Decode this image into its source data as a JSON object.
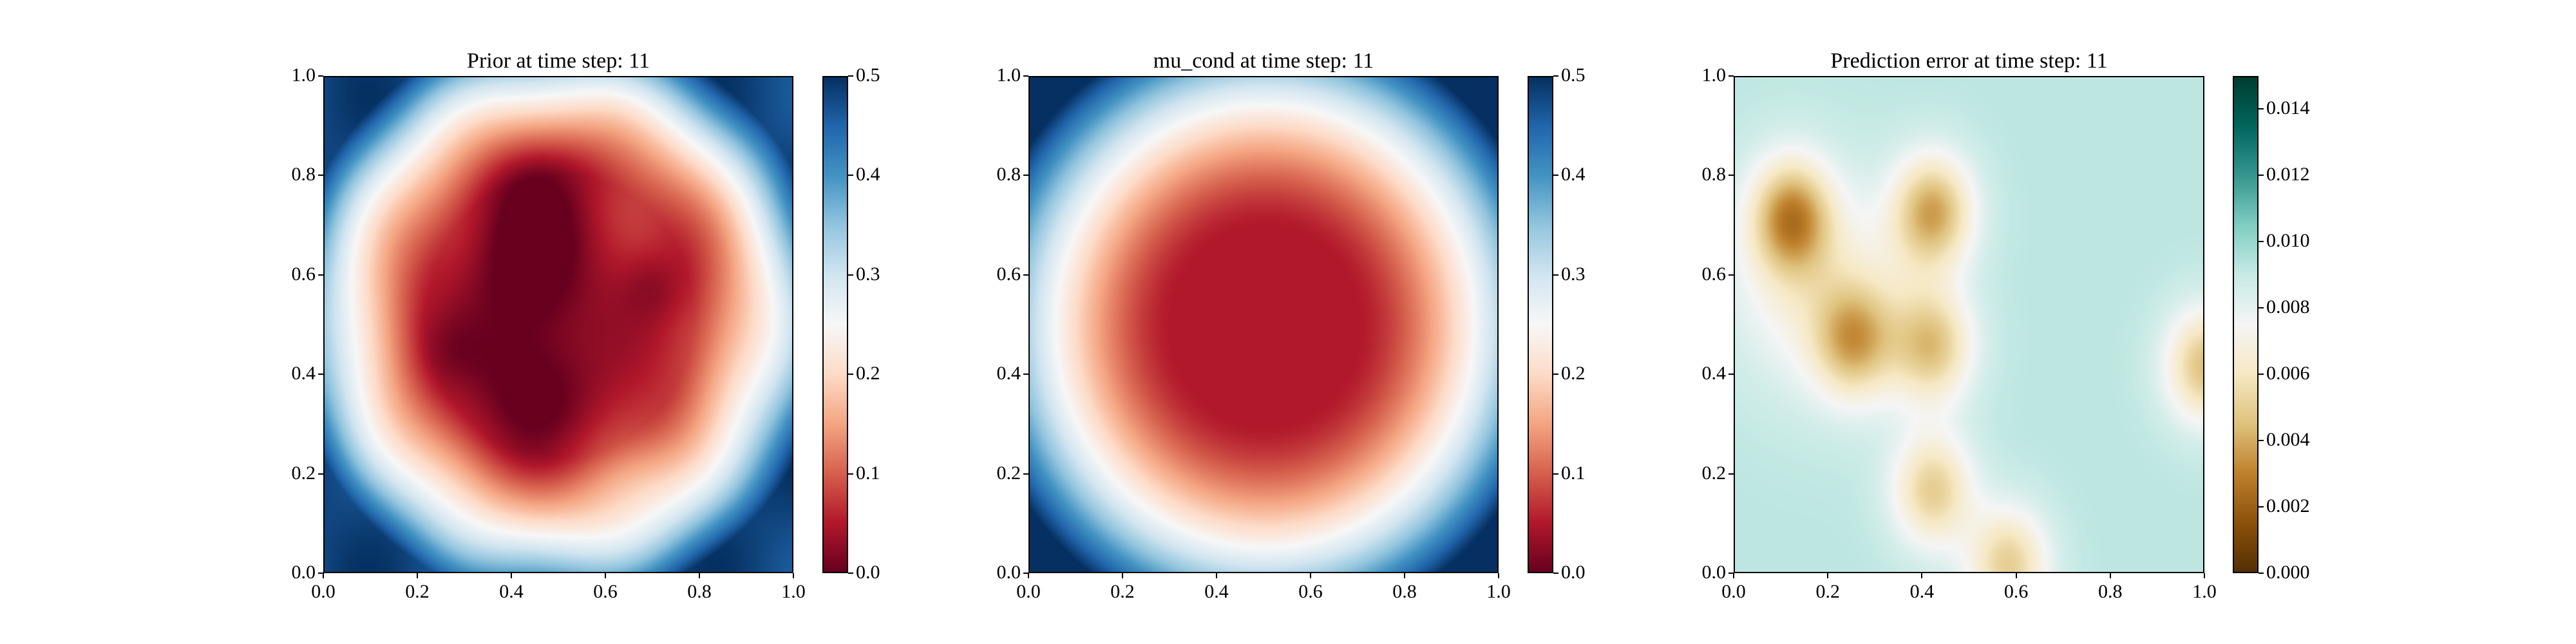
{
  "chart_data": [
    {
      "type": "heatmap",
      "title": "Prior at time step: 11",
      "x_ticks": [
        "0.0",
        "0.2",
        "0.4",
        "0.6",
        "0.8",
        "1.0"
      ],
      "y_ticks": [
        "0.0",
        "0.2",
        "0.4",
        "0.6",
        "0.8",
        "1.0"
      ],
      "xlim": [
        0,
        1
      ],
      "ylim": [
        0,
        1
      ],
      "colormap": "RdBu",
      "colorbar_ticks": [
        "0.0",
        "0.1",
        "0.2",
        "0.3",
        "0.4",
        "0.5"
      ],
      "colorbar_range": [
        0,
        0.5
      ],
      "field_description_value_centers": [
        {
          "x": 0.45,
          "y": 0.6,
          "value": 0.0
        },
        {
          "x": 0.45,
          "y": 0.35,
          "value": 0.02
        },
        {
          "x": 0.7,
          "y": 0.58,
          "value": 0.05
        }
      ],
      "corner_values": {
        "bottom_left": 0.5,
        "top_left": 0.42,
        "top_right": 0.45,
        "bottom_right": 0.4
      }
    },
    {
      "type": "heatmap",
      "title": "mu_cond at time step: 11",
      "x_ticks": [
        "0.0",
        "0.2",
        "0.4",
        "0.6",
        "0.8",
        "1.0"
      ],
      "y_ticks": [
        "0.0",
        "0.2",
        "0.4",
        "0.6",
        "0.8",
        "1.0"
      ],
      "xlim": [
        0,
        1
      ],
      "ylim": [
        0,
        1
      ],
      "colormap": "RdBu",
      "colorbar_ticks": [
        "0.0",
        "0.1",
        "0.2",
        "0.3",
        "0.4",
        "0.5"
      ],
      "colorbar_range": [
        0,
        0.5
      ],
      "center_value": 0.05,
      "corner_values": {
        "bottom_left": 0.45,
        "top_left": 0.45,
        "top_right": 0.45,
        "bottom_right": 0.45
      }
    },
    {
      "type": "heatmap",
      "title": "Prediction error at time step: 11",
      "x_ticks": [
        "0.0",
        "0.2",
        "0.4",
        "0.6",
        "0.8",
        "1.0"
      ],
      "y_ticks": [
        "0.0",
        "0.2",
        "0.4",
        "0.6",
        "0.8",
        "1.0"
      ],
      "xlim": [
        0,
        1
      ],
      "ylim": [
        0,
        1
      ],
      "colormap": "BrBG",
      "colorbar_ticks": [
        "0.000",
        "0.002",
        "0.004",
        "0.006",
        "0.008",
        "0.010",
        "0.012",
        "0.014"
      ],
      "colorbar_range": [
        0,
        0.015
      ],
      "background_value": 0.009,
      "low_spots": [
        {
          "x": 0.12,
          "y": 0.72,
          "value": 0.004
        },
        {
          "x": 0.42,
          "y": 0.73,
          "value": 0.004
        },
        {
          "x": 0.25,
          "y": 0.47,
          "value": 0.005
        },
        {
          "x": 0.42,
          "y": 0.46,
          "value": 0.005
        },
        {
          "x": 0.42,
          "y": 0.17,
          "value": 0.005
        },
        {
          "x": 0.58,
          "y": 0.02,
          "value": 0.005
        },
        {
          "x": 1.0,
          "y": 0.42,
          "value": 0.0045
        }
      ]
    }
  ]
}
